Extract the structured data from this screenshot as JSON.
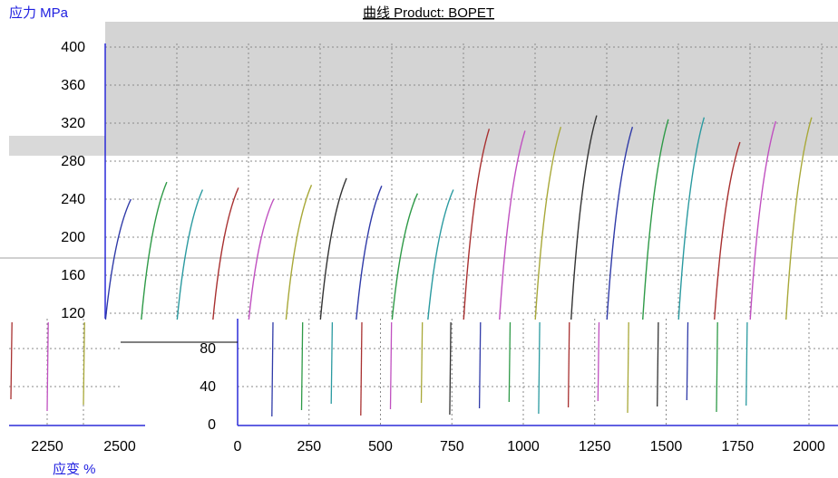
{
  "chart_data": {
    "type": "line",
    "title": "曲线 Product: BOPET",
    "ylabel": "应力 MPa",
    "xlabel": "应变 %",
    "ylim": [
      0,
      400
    ],
    "y_ticks": [
      0,
      40,
      80,
      120,
      160,
      200,
      240,
      280,
      320,
      360,
      400
    ],
    "xlim": [
      0,
      2000
    ],
    "x_ticks": [
      0,
      250,
      500,
      750,
      1000,
      1250,
      1500,
      1750,
      2000
    ],
    "inset_x_ticks": [
      "2250",
      "2500"
    ],
    "grid": true,
    "series": [
      {
        "color": "#2f3aa8",
        "x0": 0,
        "x1": 90,
        "ymax": 240
      },
      {
        "color": "#2e9a47",
        "x0": 125,
        "x1": 215,
        "ymax": 258
      },
      {
        "color": "#2a9aa0",
        "x0": 250,
        "x1": 340,
        "ymax": 250
      },
      {
        "color": "#a83030",
        "x0": 375,
        "x1": 465,
        "ymax": 252
      },
      {
        "color": "#c050c0",
        "x0": 500,
        "x1": 588,
        "ymax": 240
      },
      {
        "color": "#a8a838",
        "x0": 630,
        "x1": 720,
        "ymax": 255
      },
      {
        "color": "#333333",
        "x0": 750,
        "x1": 842,
        "ymax": 262
      },
      {
        "color": "#2f3aa8",
        "x0": 875,
        "x1": 965,
        "ymax": 254
      },
      {
        "color": "#2e9a47",
        "x0": 1000,
        "x1": 1090,
        "ymax": 246
      },
      {
        "color": "#2a9aa0",
        "x0": 1125,
        "x1": 1215,
        "ymax": 250
      },
      {
        "color": "#a83030",
        "x0": 1250,
        "x1": 1340,
        "ymax": 314
      },
      {
        "color": "#c050c0",
        "x0": 1375,
        "x1": 1465,
        "ymax": 312
      },
      {
        "color": "#a8a838",
        "x0": 1500,
        "x1": 1590,
        "ymax": 316
      },
      {
        "color": "#333333",
        "x0": 1625,
        "x1": 1715,
        "ymax": 328
      },
      {
        "color": "#2f3aa8",
        "x0": 1750,
        "x1": 1840,
        "ymax": 316
      },
      {
        "color": "#2e9a47",
        "x0": 1875,
        "x1": 1965,
        "ymax": 324
      },
      {
        "color": "#2a9aa0",
        "x0": 2000,
        "x1": 2090,
        "ymax": 326
      },
      {
        "color": "#a83030",
        "x0": 2125,
        "x1": 2215,
        "ymax": 300
      },
      {
        "color": "#c050c0",
        "x0": 2250,
        "x1": 2340,
        "ymax": 322
      },
      {
        "color": "#a8a838",
        "x0": 2375,
        "x1": 2465,
        "ymax": 326
      }
    ]
  }
}
